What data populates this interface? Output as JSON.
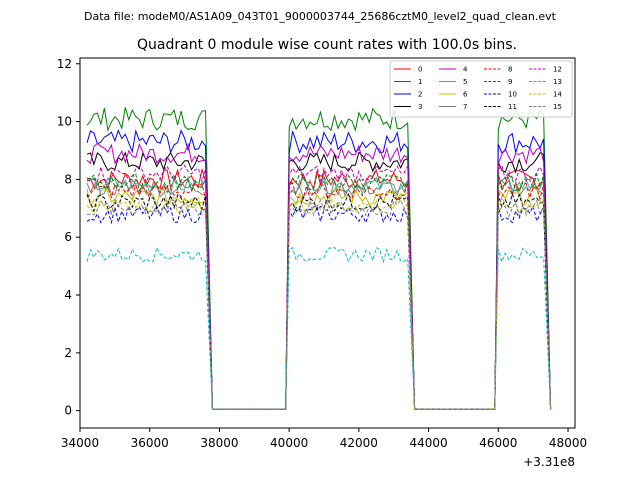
{
  "suptitle": "Data file: modeM0/AS1A09_043T01_9000003744_25686cztM0_level2_quad_clean.evt",
  "chart_data": {
    "type": "line",
    "title": "Quadrant 0 module wise count rates with 100.0s bins.",
    "xlabel": "",
    "ylabel": "",
    "x_offset_text": "+3.31e8",
    "xlim": [
      34000,
      48200
    ],
    "ylim": [
      -0.6,
      12.2
    ],
    "x_ticks": [
      34000,
      36000,
      38000,
      40000,
      42000,
      44000,
      46000,
      48000
    ],
    "x_tick_labels": [
      "34000",
      "36000",
      "38000",
      "40000",
      "42000",
      "44000",
      "46000",
      "48000"
    ],
    "y_ticks": [
      0,
      2,
      4,
      6,
      8,
      10,
      12
    ],
    "y_tick_labels": [
      "0",
      "2",
      "4",
      "6",
      "8",
      "10",
      "12"
    ],
    "segments": [
      {
        "x_start": 34200,
        "x_end": 37600,
        "drop_to": 37800,
        "gap_end": 39900
      },
      {
        "x_start": 40000,
        "x_end": 43400,
        "drop_to": 43600,
        "gap_end": 45900
      },
      {
        "x_start": 46000,
        "x_end": 47300,
        "drop_to": 47500,
        "gap_end": null
      }
    ],
    "series": [
      {
        "name": "0",
        "color": "#ff0000",
        "dash": "solid",
        "mean": 8.0,
        "spread": 0.35
      },
      {
        "name": "1",
        "color": "#008000",
        "dash": "solid",
        "mean": 10.1,
        "spread": 0.4
      },
      {
        "name": "2",
        "color": "#0000ff",
        "dash": "solid",
        "mean": 9.3,
        "spread": 0.4
      },
      {
        "name": "3",
        "color": "#000000",
        "dash": "solid",
        "mean": 8.6,
        "spread": 0.35
      },
      {
        "name": "4",
        "color": "#bf00bf",
        "dash": "solid",
        "mean": 8.9,
        "spread": 0.35
      },
      {
        "name": "5",
        "color": "#1abc9c",
        "dash": "solid",
        "mean": 7.8,
        "spread": 0.3
      },
      {
        "name": "6",
        "color": "#bfbf00",
        "dash": "solid",
        "mean": 7.4,
        "spread": 0.3
      },
      {
        "name": "7",
        "color": "#808080",
        "dash": "solid",
        "mean": 7.7,
        "spread": 0.3
      },
      {
        "name": "8",
        "color": "#ff0000",
        "dash": "dashed",
        "mean": 7.6,
        "spread": 0.3
      },
      {
        "name": "9",
        "color": "#008000",
        "dash": "dashed",
        "mean": 7.9,
        "spread": 0.3
      },
      {
        "name": "10",
        "color": "#0000ff",
        "dash": "dashed",
        "mean": 6.8,
        "spread": 0.3
      },
      {
        "name": "11",
        "color": "#000000",
        "dash": "dashed",
        "mean": 7.2,
        "spread": 0.3
      },
      {
        "name": "12",
        "color": "#bf00bf",
        "dash": "dashed",
        "mean": 8.2,
        "spread": 0.3
      },
      {
        "name": "13",
        "color": "#00bfbf",
        "dash": "dashed",
        "mean": 5.4,
        "spread": 0.25
      },
      {
        "name": "14",
        "color": "#bfbf00",
        "dash": "dashed",
        "mean": 7.1,
        "spread": 0.3
      },
      {
        "name": "15",
        "color": "#808080",
        "dash": "dashed",
        "mean": 7.0,
        "spread": 0.3
      }
    ]
  }
}
